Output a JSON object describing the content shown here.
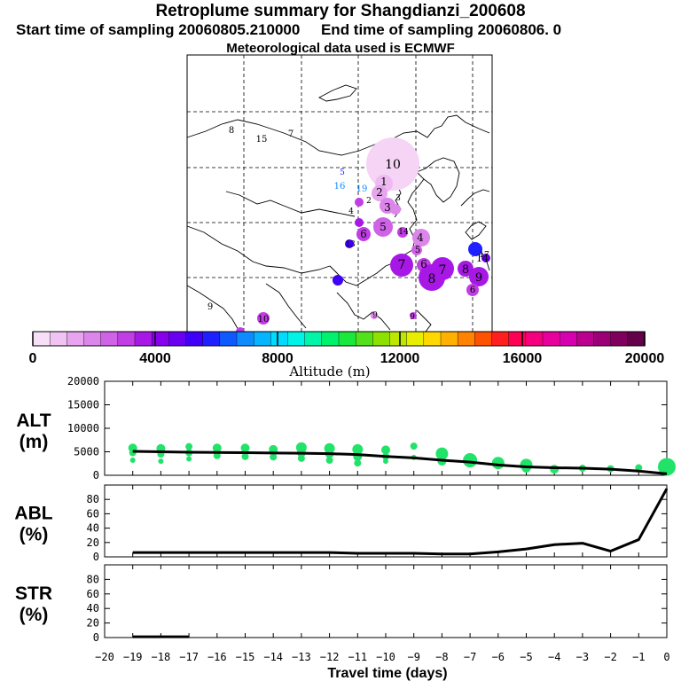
{
  "header": {
    "title": "Retroplume summary for Shangdianzi_200608",
    "start_label": "Start time of sampling 20060805.210000",
    "end_label": "End time of sampling 20060806.     0",
    "met_label": "Meteorological data used is ECMWF"
  },
  "colorbar": {
    "tick_labels": [
      "0",
      "4000",
      "8000",
      "12000",
      "16000",
      "20000"
    ],
    "title": "Altitude (m)",
    "colors": [
      "#f7e0f7",
      "#efc4f3",
      "#e6a5ee",
      "#dc85ea",
      "#cf62e6",
      "#c03ee3",
      "#a718e6",
      "#8900ec",
      "#6a00f2",
      "#3f00f7",
      "#1f20ff",
      "#1059ff",
      "#0d8bff",
      "#06b5ff",
      "#00dcff",
      "#00f3e6",
      "#00f5a8",
      "#00f26c",
      "#1be83c",
      "#52e11b",
      "#8ce100",
      "#bde600",
      "#e8ee00",
      "#ffd800",
      "#ffb000",
      "#ff8300",
      "#ff5200",
      "#ff1f1f",
      "#ff0055",
      "#f5007e",
      "#e8009d",
      "#d600b0",
      "#bb0090",
      "#9c0077",
      "#80005e",
      "#640049"
    ]
  },
  "map_labels": [
    {
      "text": "8",
      "color": "#000000"
    },
    {
      "text": "15",
      "color": "#000000"
    },
    {
      "text": "7",
      "color": "#000000"
    },
    {
      "text": "5",
      "color": "#1a1aff"
    },
    {
      "text": "16",
      "color": "#0e8bff"
    },
    {
      "text": "19",
      "color": "#0e8bff"
    },
    {
      "text": "10",
      "color": "#000000"
    },
    {
      "text": "1",
      "color": "#000000"
    },
    {
      "text": "2",
      "color": "#000000"
    },
    {
      "text": "3",
      "color": "#000000"
    },
    {
      "text": "3",
      "color": "#000000"
    },
    {
      "text": "2",
      "color": "#000000"
    },
    {
      "text": "4",
      "color": "#000000"
    },
    {
      "text": "5",
      "color": "#000000"
    },
    {
      "text": "6",
      "color": "#000000"
    },
    {
      "text": "14",
      "color": "#000000"
    },
    {
      "text": "4",
      "color": "#000000"
    },
    {
      "text": "5",
      "color": "#000000"
    },
    {
      "text": "13",
      "color": "#000000"
    },
    {
      "text": "7",
      "color": "#000000"
    },
    {
      "text": "6",
      "color": "#000000"
    },
    {
      "text": "7",
      "color": "#000000"
    },
    {
      "text": "8",
      "color": "#000000"
    },
    {
      "text": "8",
      "color": "#000000"
    },
    {
      "text": "9",
      "color": "#000000"
    },
    {
      "text": "14",
      "color": "#000000"
    },
    {
      "text": "6",
      "color": "#000000"
    },
    {
      "text": "17",
      "color": "#000000"
    },
    {
      "text": "9",
      "color": "#000000"
    },
    {
      "text": "10",
      "color": "#000000"
    },
    {
      "text": "9",
      "color": "#000000"
    },
    {
      "text": "9",
      "color": "#000000"
    }
  ],
  "chart_data": [
    {
      "type": "line",
      "panel": "ALT",
      "ylabel": "ALT\n(m)",
      "ylim": [
        0,
        20000
      ],
      "yticks": [
        0,
        5000,
        10000,
        15000,
        20000
      ],
      "x": [
        -19,
        -18,
        -17,
        -16,
        -15,
        -14,
        -13,
        -12,
        -11,
        -10,
        -9,
        -8,
        -7,
        -6,
        -5,
        -4,
        -3,
        -2,
        -1,
        0
      ],
      "series": [
        {
          "name": "mean altitude",
          "values": [
            5100,
            5000,
            4900,
            4850,
            4800,
            4750,
            4700,
            4600,
            4400,
            4000,
            3700,
            3200,
            2800,
            2200,
            1800,
            1600,
            1500,
            1300,
            900,
            300
          ]
        }
      ],
      "scatter": {
        "name": "plume altitude spread",
        "x": [
          -19,
          -19,
          -19,
          -18,
          -18,
          -18,
          -17,
          -17,
          -17,
          -16,
          -16,
          -15,
          -15,
          -14,
          -14,
          -13,
          -13,
          -13,
          -12,
          -12,
          -12,
          -11,
          -11,
          -11,
          -10,
          -10,
          -10,
          -9,
          -9,
          -8,
          -8,
          -7,
          -6,
          -5,
          -5,
          -4,
          -3,
          -2,
          -1,
          0
        ],
        "y": [
          5800,
          4800,
          3200,
          5700,
          4500,
          3000,
          6100,
          4800,
          3500,
          5800,
          4200,
          5800,
          4000,
          5500,
          3900,
          5900,
          4800,
          3600,
          5700,
          4600,
          3200,
          5500,
          4000,
          2600,
          5400,
          4000,
          3000,
          6200,
          3800,
          4600,
          3000,
          3200,
          2600,
          2200,
          1500,
          1300,
          1500,
          1400,
          1600,
          1800
        ],
        "size": [
          5,
          4,
          3,
          5,
          4,
          3,
          4,
          4,
          3,
          5,
          4,
          5,
          4,
          5,
          4,
          6,
          5,
          4,
          6,
          5,
          4,
          6,
          5,
          4,
          5,
          4,
          3,
          4,
          3,
          7,
          5,
          8,
          7,
          7,
          5,
          5,
          4,
          4,
          4,
          10
        ]
      }
    },
    {
      "type": "line",
      "panel": "ABL",
      "ylabel": "ABL\n(%)",
      "ylim": [
        0,
        100
      ],
      "yticks": [
        0,
        20,
        40,
        60,
        80
      ],
      "x": [
        -19,
        -18,
        -17,
        -16,
        -15,
        -14,
        -13,
        -12,
        -11,
        -10,
        -9,
        -8,
        -7,
        -6,
        -5,
        -4,
        -3,
        -2,
        -1,
        0
      ],
      "series": [
        {
          "name": "ABL fraction",
          "values": [
            6,
            6,
            6,
            6,
            6,
            6,
            6,
            6,
            5,
            5,
            5,
            4,
            4,
            7,
            11,
            17,
            19,
            8,
            24,
            95
          ]
        }
      ]
    },
    {
      "type": "line",
      "panel": "STR",
      "ylabel": "STR\n(%)",
      "ylim": [
        0,
        100
      ],
      "yticks": [
        0,
        20,
        40,
        60,
        80
      ],
      "x": [
        -19,
        -18,
        -17
      ],
      "series": [
        {
          "name": "STR fraction",
          "values": [
            1,
            1,
            1
          ]
        }
      ]
    }
  ],
  "xaxis": {
    "xlim": [
      -20,
      0
    ],
    "tick_labels": [
      "−20",
      "−19",
      "−18",
      "−17",
      "−16",
      "−15",
      "−14",
      "−13",
      "−12",
      "−11",
      "−10",
      "−9",
      "−8",
      "−7",
      "−6",
      "−5",
      "−4",
      "−3",
      "−2",
      "−1",
      "0"
    ],
    "xlabel": "Travel time (days)"
  }
}
